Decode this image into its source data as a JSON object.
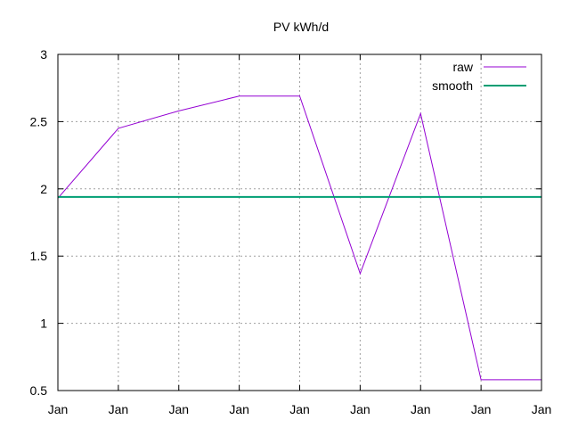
{
  "chart_data": {
    "type": "line",
    "title": "PV kWh/d",
    "xlabel": "",
    "ylabel": "",
    "x_tick_labels": [
      "Jan",
      "Jan",
      "Jan",
      "Jan",
      "Jan",
      "Jan",
      "Jan",
      "Jan",
      "Jan"
    ],
    "ylim": [
      0.5,
      3
    ],
    "y_ticks": [
      0.5,
      1,
      1.5,
      2,
      2.5,
      3
    ],
    "y_tick_labels": [
      "0.5",
      "1",
      "1.5",
      "2",
      "2.5",
      "3"
    ],
    "grid": true,
    "legend_position": "top-right",
    "series": [
      {
        "name": "raw",
        "color": "#9400d3",
        "values": [
          1.93,
          2.45,
          2.58,
          2.69,
          2.69,
          1.37,
          2.56,
          0.58,
          0.58
        ]
      },
      {
        "name": "smooth",
        "color": "#009e73",
        "values": [
          1.94,
          1.94,
          1.94,
          1.94,
          1.94,
          1.94,
          1.94,
          1.94,
          1.94
        ]
      }
    ]
  }
}
